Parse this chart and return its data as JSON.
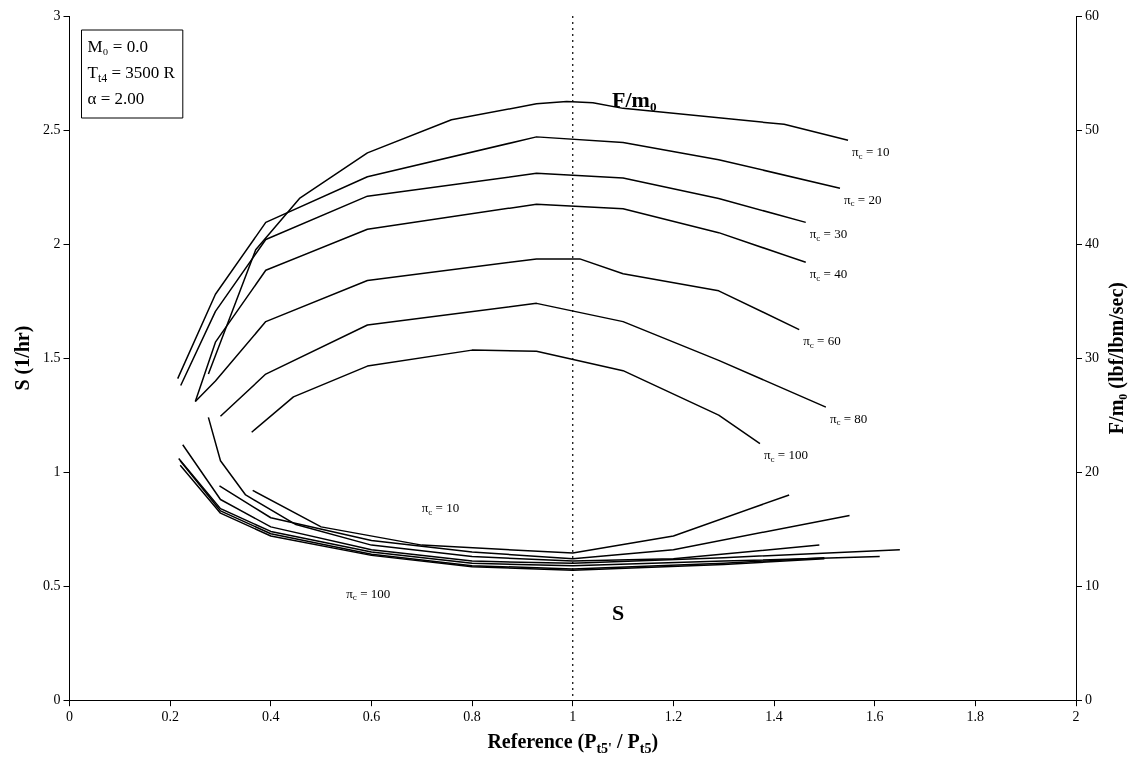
{
  "chart_data": {
    "type": "line",
    "xlabel": "Reference (P$_{t5'}$ / P$_{t5}$)",
    "ylabel": "S (1/hr)",
    "y2label": "F/m₀ (lbf/lbm/sec)",
    "xlim": [
      0,
      2
    ],
    "xticks": [
      0,
      0.2,
      0.4,
      0.6,
      0.8,
      1,
      1.2,
      1.4,
      1.6,
      1.8,
      2
    ],
    "ylim": [
      0,
      3
    ],
    "yticks": [
      0,
      0.5,
      1,
      1.5,
      2,
      2.5,
      3
    ],
    "y2lim": [
      0,
      60
    ],
    "y2ticks": [
      0,
      10,
      20,
      30,
      40,
      50,
      60
    ],
    "grid": false,
    "legend": false,
    "marker": "none",
    "line_style": "solid",
    "ref_lines": [
      {
        "axis": "x",
        "value": 1,
        "line_style": "dotted",
        "color": "#000000"
      }
    ],
    "annotations": [
      "M₀ = 0.0",
      "T$_{t4}$ = 3500 R",
      "α = 2.00",
      "F/m₀",
      "S",
      "π$_{c}$ = 10",
      "π$_{c}$ = 100"
    ],
    "series": [
      {
        "name": "π$_{c}$ = 10",
        "color": "#000000",
        "axis": "y2",
        "x": [
          0.276,
          0.37,
          0.457,
          0.592,
          0.759,
          0.928,
          0.988,
          1.04,
          1.1,
          1.42,
          1.547
        ],
        "values": [
          28.6,
          39.5,
          44.0,
          48.0,
          50.9,
          52.3,
          52.5,
          52.4,
          51.9,
          50.5,
          49.1
        ]
      },
      {
        "name": "π$_{c}$ = 20",
        "color": "#000000",
        "axis": "y2",
        "x": [
          0.215,
          0.29,
          0.39,
          0.592,
          0.928,
          1.1,
          1.29,
          1.531
        ],
        "values": [
          28.2,
          35.6,
          41.9,
          45.9,
          49.4,
          48.9,
          47.4,
          44.9
        ]
      },
      {
        "name": "π$_{c}$ = 30",
        "color": "#000000",
        "axis": "y2",
        "x": [
          0.221,
          0.29,
          0.39,
          0.592,
          0.928,
          1.1,
          1.29,
          1.463
        ],
        "values": [
          27.6,
          34.1,
          40.4,
          44.2,
          46.2,
          45.8,
          44.0,
          41.9
        ]
      },
      {
        "name": "π$_{c}$ = 40",
        "color": "#000000",
        "axis": "y2",
        "x": [
          0.25,
          0.29,
          0.39,
          0.592,
          0.928,
          1.1,
          1.29,
          1.463
        ],
        "values": [
          26.2,
          31.4,
          37.7,
          41.3,
          43.5,
          43.1,
          41.0,
          38.4
        ]
      },
      {
        "name": "π$_{c}$ = 60",
        "color": "#000000",
        "axis": "y2",
        "x": [
          0.25,
          0.29,
          0.39,
          0.592,
          0.928,
          1.014,
          1.1,
          1.29,
          1.45
        ],
        "values": [
          26.2,
          28.0,
          33.2,
          36.8,
          38.7,
          38.7,
          37.4,
          35.9,
          32.5
        ]
      },
      {
        "name": "π$_{c}$ = 80",
        "color": "#000000",
        "axis": "y2",
        "x": [
          0.3,
          0.39,
          0.592,
          0.928,
          1.1,
          1.29,
          1.503
        ],
        "values": [
          24.9,
          28.6,
          32.9,
          34.8,
          33.2,
          29.8,
          25.7
        ]
      },
      {
        "name": "π$_{c}$ = 100",
        "color": "#000000",
        "axis": "y2",
        "x": [
          0.362,
          0.445,
          0.592,
          0.8,
          0.928,
          1.1,
          1.29,
          1.372
        ],
        "values": [
          23.5,
          26.6,
          29.3,
          30.7,
          30.6,
          28.9,
          25.0,
          22.5
        ]
      },
      {
        "color": "#000000",
        "x": [
          0.364,
          0.5,
          0.7,
          1.0,
          1.2,
          1.43
        ],
        "values": [
          0.92,
          0.76,
          0.68,
          0.645,
          0.72,
          0.9
        ]
      },
      {
        "color": "#000000",
        "x": [
          0.298,
          0.4,
          0.6,
          0.8,
          1.0,
          1.2,
          1.55
        ],
        "values": [
          0.94,
          0.8,
          0.7,
          0.65,
          0.62,
          0.66,
          0.81
        ]
      },
      {
        "color": "#000000",
        "x": [
          0.276,
          0.3,
          0.35,
          0.45,
          0.6,
          0.8,
          1.0,
          1.2,
          1.49
        ],
        "values": [
          1.24,
          1.05,
          0.9,
          0.77,
          0.68,
          0.63,
          0.61,
          0.62,
          0.68
        ]
      },
      {
        "color": "#000000",
        "x": [
          0.225,
          0.3,
          0.4,
          0.6,
          0.8,
          1.0,
          1.3,
          1.65
        ],
        "values": [
          1.12,
          0.88,
          0.76,
          0.66,
          0.61,
          0.6,
          0.625,
          0.66
        ]
      },
      {
        "color": "#000000",
        "x": [
          0.217,
          0.3,
          0.4,
          0.6,
          0.8,
          1.0,
          1.3,
          1.61
        ],
        "values": [
          1.06,
          0.84,
          0.74,
          0.65,
          0.6,
          0.59,
          0.61,
          0.63
        ]
      },
      {
        "color": "#000000",
        "x": [
          0.22,
          0.3,
          0.4,
          0.6,
          0.8,
          1.0,
          1.3,
          1.5
        ],
        "values": [
          1.05,
          0.83,
          0.73,
          0.64,
          0.59,
          0.575,
          0.6,
          0.625
        ]
      },
      {
        "color": "#000000",
        "x": [
          0.22,
          0.3,
          0.4,
          0.6,
          0.8,
          1.0,
          1.3,
          1.5
        ],
        "values": [
          1.03,
          0.82,
          0.72,
          0.635,
          0.585,
          0.57,
          0.595,
          0.62
        ]
      }
    ]
  }
}
